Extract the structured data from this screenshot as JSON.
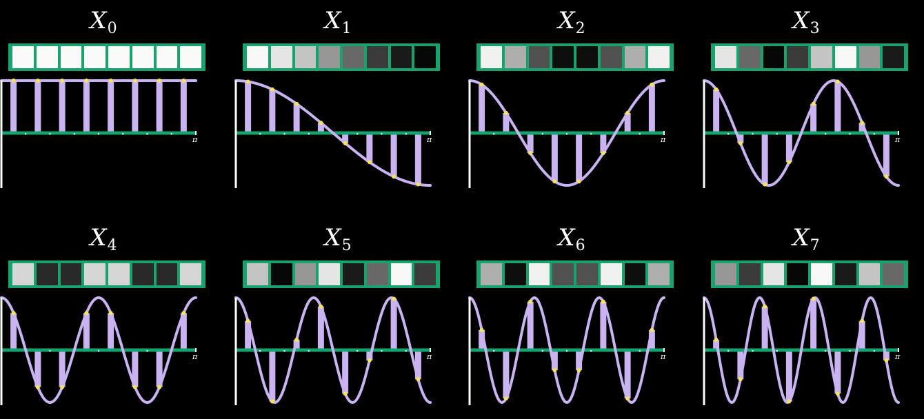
{
  "diagram": {
    "title_symbol": "X",
    "pi_label": "π",
    "samples_per_basis": 8,
    "colors": {
      "background": "#000000",
      "strip_border": "#16a36e",
      "axis_baseline": "#16a36e",
      "tick": "#ffffff",
      "curve": "#c9b3f0",
      "stem": "#c9b3f0",
      "sample_point": "#f5e35a",
      "y_axis": "#ffffff"
    },
    "panels": [
      {
        "label": "X",
        "index": "0",
        "k": 0
      },
      {
        "label": "X",
        "index": "1",
        "k": 1
      },
      {
        "label": "X",
        "index": "2",
        "k": 2
      },
      {
        "label": "X",
        "index": "3",
        "k": 3
      },
      {
        "label": "X",
        "index": "4",
        "k": 4
      },
      {
        "label": "X",
        "index": "5",
        "k": 5
      },
      {
        "label": "X",
        "index": "6",
        "k": 6
      },
      {
        "label": "X",
        "index": "7",
        "k": 7
      }
    ]
  }
}
